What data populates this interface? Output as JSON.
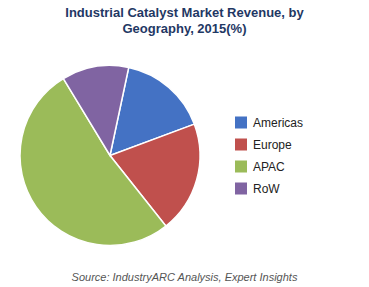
{
  "chart_data": {
    "type": "pie",
    "title": "Industrial Catalyst Market Revenue, by\nGeography, 2015(%)",
    "categories": [
      "Americas",
      "Europe",
      "APAC",
      "RoW"
    ],
    "values": [
      16,
      20,
      52,
      12
    ],
    "colors": [
      "#4472C4",
      "#C0504D",
      "#9BBB59",
      "#8064A2"
    ],
    "legend": "right",
    "annotations": [
      "Source: IndustryARC Analysis, Expert Insights"
    ]
  }
}
